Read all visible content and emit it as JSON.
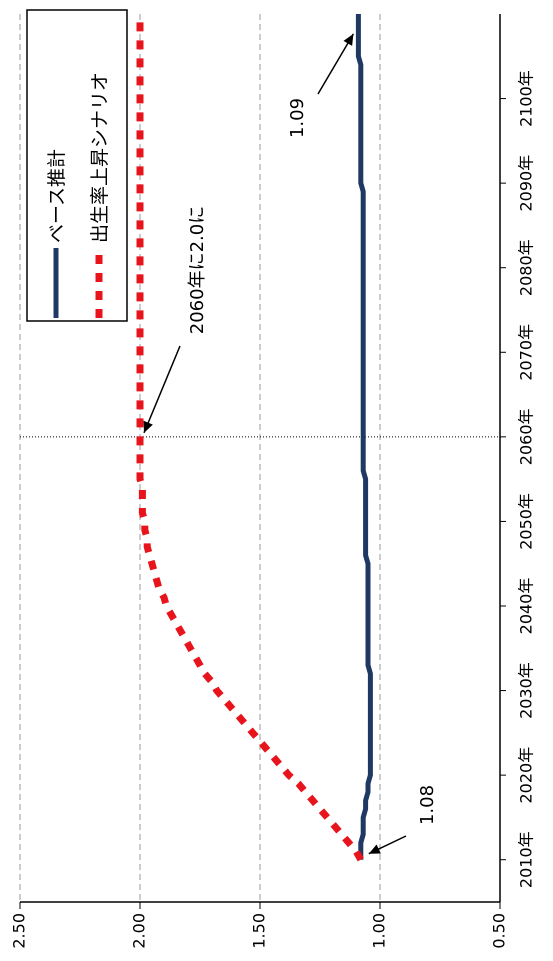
{
  "chart_data": {
    "type": "line",
    "orientation": "rotated-90-clockwise",
    "x": [
      2010,
      2011,
      2012,
      2013,
      2014,
      2015,
      2016,
      2017,
      2018,
      2019,
      2020,
      2021,
      2022,
      2023,
      2024,
      2025,
      2026,
      2027,
      2028,
      2029,
      2030,
      2031,
      2032,
      2033,
      2034,
      2035,
      2036,
      2037,
      2038,
      2039,
      2040,
      2041,
      2042,
      2043,
      2044,
      2045,
      2046,
      2047,
      2048,
      2049,
      2050,
      2051,
      2052,
      2053,
      2054,
      2055,
      2056,
      2057,
      2058,
      2059,
      2060,
      2061,
      2062,
      2063,
      2064,
      2065,
      2066,
      2067,
      2068,
      2069,
      2070,
      2071,
      2072,
      2073,
      2074,
      2075,
      2076,
      2077,
      2078,
      2079,
      2080,
      2081,
      2082,
      2083,
      2084,
      2085,
      2086,
      2087,
      2088,
      2089,
      2090,
      2091,
      2092,
      2093,
      2094,
      2095,
      2096,
      2097,
      2098,
      2099,
      2100,
      2101,
      2102,
      2103,
      2104,
      2105,
      2106,
      2107,
      2108,
      2109,
      2110
    ],
    "ylim": [
      0.5,
      2.5
    ],
    "y_ticks": [
      "0.50",
      "1.00",
      "1.50",
      "2.00",
      "2.50"
    ],
    "y_ticks_values": [
      0.5,
      1.0,
      1.5,
      2.0,
      2.5
    ],
    "x_ticks": [
      "2010年",
      "2020年",
      "2030年",
      "2040年",
      "2050年",
      "2060年",
      "2070年",
      "2080年",
      "2090年",
      "2100年"
    ],
    "x_ticks_values": [
      2010,
      2020,
      2030,
      2040,
      2050,
      2060,
      2070,
      2080,
      2090,
      2100
    ],
    "series": [
      {
        "name": "ベース推計",
        "color": "#1f3864",
        "style": "solid",
        "values": [
          1.08,
          1.08,
          1.08,
          1.07,
          1.07,
          1.07,
          1.06,
          1.06,
          1.05,
          1.05,
          1.04,
          1.04,
          1.04,
          1.04,
          1.04,
          1.04,
          1.04,
          1.04,
          1.04,
          1.04,
          1.04,
          1.04,
          1.04,
          1.05,
          1.05,
          1.05,
          1.05,
          1.05,
          1.05,
          1.05,
          1.05,
          1.05,
          1.05,
          1.05,
          1.05,
          1.05,
          1.06,
          1.06,
          1.06,
          1.06,
          1.06,
          1.06,
          1.06,
          1.06,
          1.06,
          1.06,
          1.07,
          1.07,
          1.07,
          1.07,
          1.07,
          1.07,
          1.07,
          1.07,
          1.07,
          1.07,
          1.07,
          1.07,
          1.07,
          1.07,
          1.07,
          1.07,
          1.07,
          1.07,
          1.07,
          1.07,
          1.07,
          1.07,
          1.07,
          1.07,
          1.07,
          1.07,
          1.07,
          1.07,
          1.07,
          1.07,
          1.07,
          1.07,
          1.07,
          1.07,
          1.08,
          1.08,
          1.08,
          1.08,
          1.08,
          1.08,
          1.08,
          1.08,
          1.08,
          1.08,
          1.08,
          1.08,
          1.08,
          1.08,
          1.08,
          1.09,
          1.09,
          1.09,
          1.09,
          1.09,
          1.09
        ]
      },
      {
        "name": "出生率上昇シナリオ",
        "color": "#e8141c",
        "style": "dashed",
        "values": [
          1.08,
          1.1,
          1.13,
          1.16,
          1.19,
          1.22,
          1.25,
          1.28,
          1.31,
          1.34,
          1.38,
          1.41,
          1.44,
          1.47,
          1.5,
          1.53,
          1.56,
          1.59,
          1.62,
          1.65,
          1.68,
          1.7,
          1.73,
          1.75,
          1.77,
          1.79,
          1.81,
          1.83,
          1.85,
          1.87,
          1.89,
          1.9,
          1.92,
          1.93,
          1.94,
          1.95,
          1.96,
          1.97,
          1.97,
          1.98,
          1.98,
          1.99,
          1.99,
          1.99,
          1.99,
          2.0,
          2.0,
          2.0,
          2.0,
          2.0,
          2.0,
          2.0,
          2.0,
          2.0,
          2.0,
          2.0,
          2.0,
          2.0,
          2.0,
          2.0,
          2.0,
          2.0,
          2.0,
          2.0,
          2.0,
          2.0,
          2.0,
          2.0,
          2.0,
          2.0,
          2.0,
          2.0,
          2.0,
          2.0,
          2.0,
          2.0,
          2.0,
          2.0,
          2.0,
          2.0,
          2.0,
          2.0,
          2.0,
          2.0,
          2.0,
          2.0,
          2.0,
          2.0,
          2.0,
          2.0,
          2.0,
          2.0,
          2.0,
          2.0,
          2.0,
          2.0,
          2.0,
          2.0,
          2.0,
          2.0,
          2.0
        ]
      }
    ],
    "annotations": [
      {
        "text": "1.08",
        "x": 2010,
        "y": 1.08
      },
      {
        "text": "2060年に2.0に",
        "x": 2060,
        "y": 2.0
      },
      {
        "text": "1.09",
        "x": 2110,
        "y": 1.09
      }
    ],
    "vline_x": 2060,
    "grid": true,
    "legend_position": "top-left"
  }
}
